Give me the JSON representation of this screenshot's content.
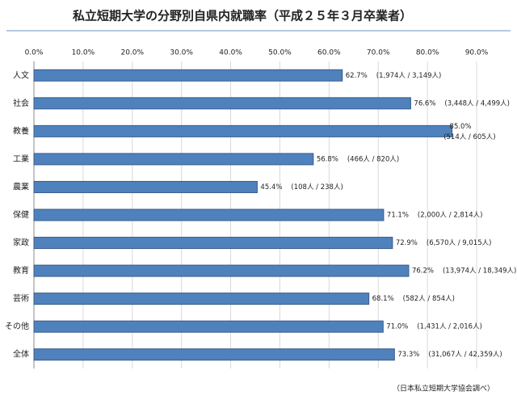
{
  "chart_data": {
    "type": "bar",
    "orientation": "horizontal",
    "title": "私立短期大学の分野別自県内就職率（平成２５年３月卒業者）",
    "categories": [
      "人文",
      "社会",
      "教養",
      "工業",
      "農業",
      "保健",
      "家政",
      "教育",
      "芸術",
      "その他",
      "全体"
    ],
    "values": [
      62.7,
      76.6,
      85.0,
      56.8,
      45.4,
      71.1,
      72.9,
      76.2,
      68.1,
      71.0,
      73.3
    ],
    "value_labels": [
      "62.7%",
      "76.6%",
      "85.0%",
      "56.8%",
      "45.4%",
      "71.1%",
      "72.9%",
      "76.2%",
      "68.1%",
      "71.0%",
      "73.3%"
    ],
    "annotations": [
      "(1,974人 / 3,149人)",
      "(3,448人 / 4,499人)",
      "(514人 / 605人)",
      "(466人 / 820人)",
      "(108人 / 238人)",
      "(2,000人 / 2,814人)",
      "(6,570人 / 9,015人)",
      "(13,974人 / 18,349人)",
      "(582人 / 854人)",
      "(1,431人 / 2,016人)",
      "(31,067人 / 42,359人)"
    ],
    "color": "#4f81bd",
    "xlim": [
      0,
      90
    ],
    "xticks": [
      {
        "value": 0,
        "label": "0.0%"
      },
      {
        "value": 10,
        "label": "10.0%"
      },
      {
        "value": 20,
        "label": "20.0%"
      },
      {
        "value": 30,
        "label": "30.0%"
      },
      {
        "value": 40,
        "label": "40.0%"
      },
      {
        "value": 50,
        "label": "50.0%"
      },
      {
        "value": 60,
        "label": "60.0%"
      },
      {
        "value": 70,
        "label": "70.0%"
      },
      {
        "value": 80,
        "label": "80.0%"
      },
      {
        "value": 90,
        "label": "90.0%"
      }
    ],
    "grid": true,
    "source": "（日本私立短期大学協会調べ）"
  }
}
